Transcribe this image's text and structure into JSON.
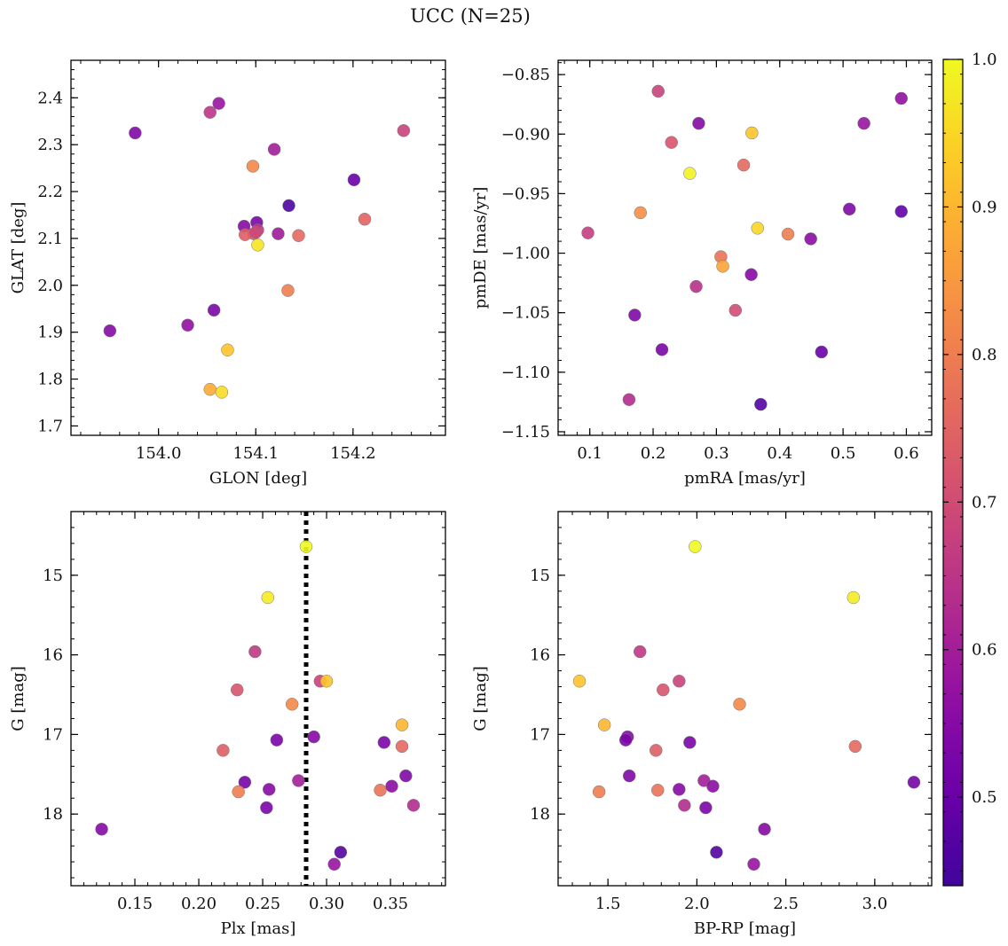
{
  "figure": {
    "title": "UCC (N=25)"
  },
  "colorbar": {
    "min": 0.44,
    "max": 1.0,
    "ticks": [
      0.5,
      0.6,
      0.7,
      0.8,
      0.9,
      1.0
    ],
    "tick_labels": [
      "0.5",
      "0.6",
      "0.7",
      "0.8",
      "0.9",
      "1.0"
    ],
    "colormap": "plasma"
  },
  "chart_data": [
    {
      "type": "scatter",
      "xlabel": "GLON [deg]",
      "ylabel": "GLAT [deg]",
      "xlim": [
        153.91,
        154.295
      ],
      "ylim": [
        1.68,
        2.48
      ],
      "xticks": [
        154.0,
        154.1,
        154.2
      ],
      "xtick_labels": [
        "154.0",
        "154.1",
        "154.2"
      ],
      "yticks": [
        1.7,
        1.8,
        1.9,
        2.0,
        2.1,
        2.2,
        2.3,
        2.4
      ],
      "ytick_labels": [
        "1.7",
        "1.8",
        "1.9",
        "2.0",
        "2.1",
        "2.2",
        "2.3",
        "2.4"
      ],
      "y_inverted": false,
      "points": [
        {
          "x": 153.976,
          "y": 2.325,
          "c": 0.54
        },
        {
          "x": 153.95,
          "y": 1.903,
          "c": 0.55
        },
        {
          "x": 154.03,
          "y": 1.915,
          "c": 0.57
        },
        {
          "x": 154.057,
          "y": 1.947,
          "c": 0.53
        },
        {
          "x": 154.053,
          "y": 2.369,
          "c": 0.65
        },
        {
          "x": 154.062,
          "y": 2.388,
          "c": 0.58
        },
        {
          "x": 154.097,
          "y": 2.254,
          "c": 0.82
        },
        {
          "x": 154.119,
          "y": 2.29,
          "c": 0.6
        },
        {
          "x": 154.088,
          "y": 2.126,
          "c": 0.55
        },
        {
          "x": 154.101,
          "y": 2.134,
          "c": 0.53
        },
        {
          "x": 154.134,
          "y": 2.17,
          "c": 0.46
        },
        {
          "x": 154.201,
          "y": 2.225,
          "c": 0.5
        },
        {
          "x": 154.252,
          "y": 2.33,
          "c": 0.68
        },
        {
          "x": 154.212,
          "y": 2.141,
          "c": 0.75
        },
        {
          "x": 154.144,
          "y": 2.106,
          "c": 0.76
        },
        {
          "x": 154.123,
          "y": 2.11,
          "c": 0.59
        },
        {
          "x": 154.102,
          "y": 2.118,
          "c": 0.66
        },
        {
          "x": 154.098,
          "y": 2.11,
          "c": 0.73
        },
        {
          "x": 154.089,
          "y": 2.108,
          "c": 0.74
        },
        {
          "x": 154.102,
          "y": 2.086,
          "c": 0.97
        },
        {
          "x": 154.133,
          "y": 1.989,
          "c": 0.8
        },
        {
          "x": 154.071,
          "y": 1.862,
          "c": 0.92
        },
        {
          "x": 154.053,
          "y": 1.778,
          "c": 0.88
        },
        {
          "x": 154.065,
          "y": 1.772,
          "c": 0.96
        },
        {
          "x": 154.1,
          "y": 2.113,
          "c": 0.69
        }
      ]
    },
    {
      "type": "scatter",
      "xlabel": "pmRA [mas/yr]",
      "ylabel": "pmDE [mas/yr]",
      "xlim": [
        0.05,
        0.64
      ],
      "ylim": [
        -1.153,
        -0.838
      ],
      "xticks": [
        0.1,
        0.2,
        0.3,
        0.4,
        0.5,
        0.6
      ],
      "xtick_labels": [
        "0.1",
        "0.2",
        "0.3",
        "0.4",
        "0.5",
        "0.6"
      ],
      "yticks": [
        -1.15,
        -1.1,
        -1.05,
        -1.0,
        -0.95,
        -0.9,
        -0.85
      ],
      "ytick_labels": [
        "−1.15",
        "−1.10",
        "−1.05",
        "−1.00",
        "−0.95",
        "−0.90",
        "−0.85"
      ],
      "y_inverted": false,
      "points": [
        {
          "x": 0.208,
          "y": -0.864,
          "c": 0.68
        },
        {
          "x": 0.229,
          "y": -0.907,
          "c": 0.72
        },
        {
          "x": 0.272,
          "y": -0.891,
          "c": 0.55
        },
        {
          "x": 0.356,
          "y": -0.899,
          "c": 0.92
        },
        {
          "x": 0.343,
          "y": -0.926,
          "c": 0.76
        },
        {
          "x": 0.258,
          "y": -0.933,
          "c": 0.99
        },
        {
          "x": 0.533,
          "y": -0.891,
          "c": 0.58
        },
        {
          "x": 0.592,
          "y": -0.87,
          "c": 0.57
        },
        {
          "x": 0.18,
          "y": -0.966,
          "c": 0.83
        },
        {
          "x": 0.097,
          "y": -0.983,
          "c": 0.67
        },
        {
          "x": 0.365,
          "y": -0.979,
          "c": 0.95
        },
        {
          "x": 0.413,
          "y": -0.984,
          "c": 0.8
        },
        {
          "x": 0.449,
          "y": -0.988,
          "c": 0.56
        },
        {
          "x": 0.51,
          "y": -0.963,
          "c": 0.54
        },
        {
          "x": 0.592,
          "y": -0.965,
          "c": 0.49
        },
        {
          "x": 0.307,
          "y": -1.003,
          "c": 0.78
        },
        {
          "x": 0.31,
          "y": -1.011,
          "c": 0.87
        },
        {
          "x": 0.355,
          "y": -1.018,
          "c": 0.55
        },
        {
          "x": 0.268,
          "y": -1.028,
          "c": 0.64
        },
        {
          "x": 0.33,
          "y": -1.048,
          "c": 0.7
        },
        {
          "x": 0.171,
          "y": -1.052,
          "c": 0.54
        },
        {
          "x": 0.214,
          "y": -1.081,
          "c": 0.53
        },
        {
          "x": 0.466,
          "y": -1.083,
          "c": 0.5
        },
        {
          "x": 0.162,
          "y": -1.123,
          "c": 0.63
        },
        {
          "x": 0.37,
          "y": -1.127,
          "c": 0.47
        }
      ]
    },
    {
      "type": "scatter",
      "xlabel": "Plx [mas]",
      "ylabel": "G [mag]",
      "xlim": [
        0.1,
        0.393
      ],
      "ylim": [
        18.9,
        14.2
      ],
      "xticks": [
        0.15,
        0.2,
        0.25,
        0.3,
        0.35
      ],
      "xtick_labels": [
        "0.15",
        "0.20",
        "0.25",
        "0.30",
        "0.35"
      ],
      "yticks": [
        15,
        16,
        17,
        18
      ],
      "ytick_labels": [
        "15",
        "16",
        "17",
        "18"
      ],
      "y_inverted": true,
      "vline": {
        "x": 0.284,
        "style": "dotted"
      },
      "points": [
        {
          "x": 0.284,
          "y": 14.64,
          "c": 1.0
        },
        {
          "x": 0.254,
          "y": 15.28,
          "c": 0.98
        },
        {
          "x": 0.244,
          "y": 15.96,
          "c": 0.66
        },
        {
          "x": 0.23,
          "y": 16.44,
          "c": 0.72
        },
        {
          "x": 0.295,
          "y": 16.33,
          "c": 0.68
        },
        {
          "x": 0.3,
          "y": 16.33,
          "c": 0.92
        },
        {
          "x": 0.273,
          "y": 16.62,
          "c": 0.82
        },
        {
          "x": 0.359,
          "y": 16.88,
          "c": 0.9
        },
        {
          "x": 0.219,
          "y": 17.2,
          "c": 0.74
        },
        {
          "x": 0.261,
          "y": 17.07,
          "c": 0.53
        },
        {
          "x": 0.29,
          "y": 17.03,
          "c": 0.55
        },
        {
          "x": 0.345,
          "y": 17.1,
          "c": 0.53
        },
        {
          "x": 0.359,
          "y": 17.15,
          "c": 0.76
        },
        {
          "x": 0.236,
          "y": 17.6,
          "c": 0.52
        },
        {
          "x": 0.231,
          "y": 17.72,
          "c": 0.8
        },
        {
          "x": 0.255,
          "y": 17.69,
          "c": 0.55
        },
        {
          "x": 0.278,
          "y": 17.58,
          "c": 0.6
        },
        {
          "x": 0.342,
          "y": 17.7,
          "c": 0.78
        },
        {
          "x": 0.351,
          "y": 17.65,
          "c": 0.56
        },
        {
          "x": 0.362,
          "y": 17.52,
          "c": 0.54
        },
        {
          "x": 0.368,
          "y": 17.89,
          "c": 0.63
        },
        {
          "x": 0.253,
          "y": 17.92,
          "c": 0.53
        },
        {
          "x": 0.124,
          "y": 18.19,
          "c": 0.55
        },
        {
          "x": 0.311,
          "y": 18.48,
          "c": 0.47
        },
        {
          "x": 0.306,
          "y": 18.63,
          "c": 0.58
        }
      ]
    },
    {
      "type": "scatter",
      "xlabel": "BP-RP [mag]",
      "ylabel": "G [mag]",
      "xlim": [
        1.22,
        3.32
      ],
      "ylim": [
        18.9,
        14.2
      ],
      "xticks": [
        1.5,
        2.0,
        2.5,
        3.0
      ],
      "xtick_labels": [
        "1.5",
        "2.0",
        "2.5",
        "3.0"
      ],
      "yticks": [
        15,
        16,
        17,
        18
      ],
      "ytick_labels": [
        "15",
        "16",
        "17",
        "18"
      ],
      "y_inverted": true,
      "points": [
        {
          "x": 1.99,
          "y": 14.64,
          "c": 1.0
        },
        {
          "x": 2.88,
          "y": 15.28,
          "c": 0.98
        },
        {
          "x": 1.68,
          "y": 15.96,
          "c": 0.66
        },
        {
          "x": 1.34,
          "y": 16.33,
          "c": 0.92
        },
        {
          "x": 1.9,
          "y": 16.33,
          "c": 0.68
        },
        {
          "x": 1.81,
          "y": 16.44,
          "c": 0.72
        },
        {
          "x": 2.24,
          "y": 16.62,
          "c": 0.82
        },
        {
          "x": 1.48,
          "y": 16.88,
          "c": 0.9
        },
        {
          "x": 1.61,
          "y": 17.03,
          "c": 0.55
        },
        {
          "x": 1.6,
          "y": 17.07,
          "c": 0.53
        },
        {
          "x": 1.96,
          "y": 17.1,
          "c": 0.53
        },
        {
          "x": 1.77,
          "y": 17.2,
          "c": 0.74
        },
        {
          "x": 2.89,
          "y": 17.15,
          "c": 0.76
        },
        {
          "x": 1.62,
          "y": 17.52,
          "c": 0.54
        },
        {
          "x": 2.04,
          "y": 17.58,
          "c": 0.6
        },
        {
          "x": 3.22,
          "y": 17.6,
          "c": 0.52
        },
        {
          "x": 2.09,
          "y": 17.65,
          "c": 0.56
        },
        {
          "x": 1.9,
          "y": 17.69,
          "c": 0.55
        },
        {
          "x": 1.78,
          "y": 17.7,
          "c": 0.78
        },
        {
          "x": 1.45,
          "y": 17.72,
          "c": 0.8
        },
        {
          "x": 1.93,
          "y": 17.89,
          "c": 0.63
        },
        {
          "x": 2.05,
          "y": 17.92,
          "c": 0.53
        },
        {
          "x": 2.38,
          "y": 18.19,
          "c": 0.55
        },
        {
          "x": 2.11,
          "y": 18.48,
          "c": 0.47
        },
        {
          "x": 2.32,
          "y": 18.63,
          "c": 0.58
        }
      ]
    }
  ]
}
